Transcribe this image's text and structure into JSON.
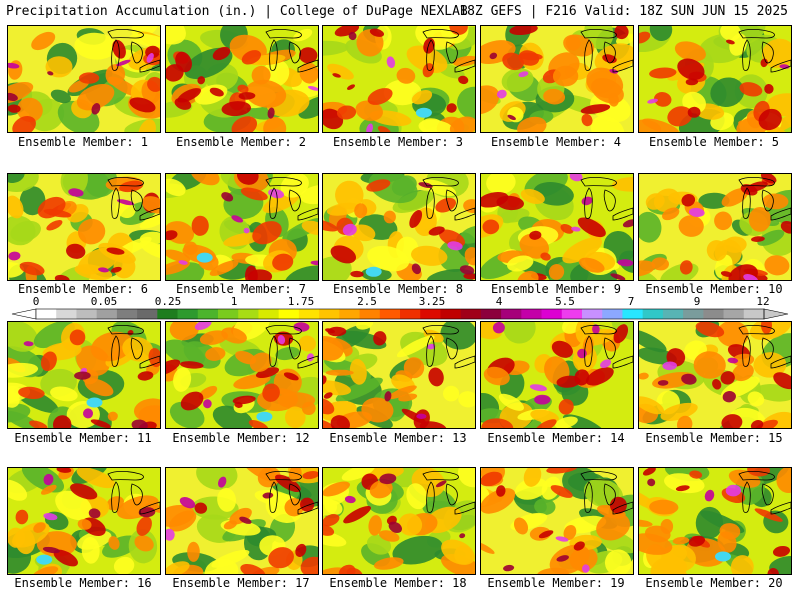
{
  "header": {
    "left": "Precipitation Accumulation (in.) | College of DuPage NEXLAB",
    "right": "18Z GEFS | F216 Valid: 18Z SUN JUN 15 2025"
  },
  "panels": [
    {
      "label": "Ensemble Member: 1"
    },
    {
      "label": "Ensemble Member: 2"
    },
    {
      "label": "Ensemble Member: 3"
    },
    {
      "label": "Ensemble Member: 4"
    },
    {
      "label": "Ensemble Member: 5"
    },
    {
      "label": "Ensemble Member: 6"
    },
    {
      "label": "Ensemble Member: 7"
    },
    {
      "label": "Ensemble Member: 8"
    },
    {
      "label": "Ensemble Member: 9"
    },
    {
      "label": "Ensemble Member: 10"
    },
    {
      "label": "Ensemble Member: 11"
    },
    {
      "label": "Ensemble Member: 12"
    },
    {
      "label": "Ensemble Member: 13"
    },
    {
      "label": "Ensemble Member: 14"
    },
    {
      "label": "Ensemble Member: 15"
    },
    {
      "label": "Ensemble Member: 16"
    },
    {
      "label": "Ensemble Member: 17"
    },
    {
      "label": "Ensemble Member: 18"
    },
    {
      "label": "Ensemble Member: 19"
    },
    {
      "label": "Ensemble Member: 20"
    }
  ],
  "colorbar": {
    "labels": [
      "0",
      "0.05",
      "0.25",
      "1",
      "1.75",
      "2.5",
      "3.25",
      "4",
      "5.5",
      "7",
      "9",
      "12"
    ],
    "colors": [
      "#ffffff",
      "#d8d8d8",
      "#bdbdbd",
      "#a0a0a0",
      "#7e7e7e",
      "#6a6a6a",
      "#1e7d1e",
      "#2e9a2e",
      "#4cb42c",
      "#7acb1e",
      "#a8dc14",
      "#d8ea00",
      "#ffff00",
      "#ffe200",
      "#ffc400",
      "#ffa600",
      "#ff8200",
      "#ff5a00",
      "#f03000",
      "#dc0a00",
      "#c00000",
      "#a00018",
      "#8c003c",
      "#a6007a",
      "#c400a8",
      "#dc00d2",
      "#ee3cee",
      "#c890ff",
      "#8ca8ff",
      "#28e6ff",
      "#30c8c8",
      "#58b4b4",
      "#7a9c9c",
      "#8c8c8c",
      "#a6a6a6",
      "#c8c8c8"
    ]
  }
}
